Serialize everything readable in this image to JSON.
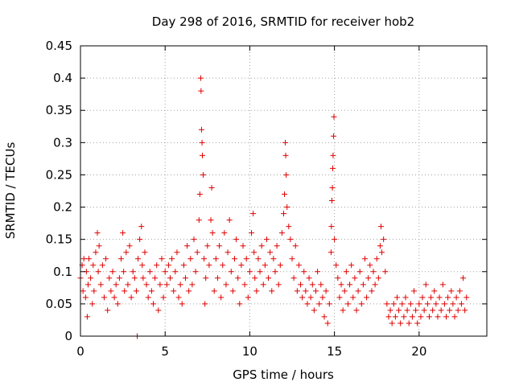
{
  "chart_data": {
    "type": "scatter",
    "title": "Day 298 of 2016, SRMTID for receiver hob2",
    "xlabel": "GPS time / hours",
    "ylabel": "SRMTID / TECUs",
    "xlim": [
      0,
      24
    ],
    "ylim": [
      0,
      0.45
    ],
    "xticks": [
      0,
      5,
      10,
      15,
      20
    ],
    "xtick_labels": [
      "0",
      "5",
      "10",
      "15",
      "20"
    ],
    "yticks": [
      0,
      0.05,
      0.1,
      0.15,
      0.2,
      0.25,
      0.3,
      0.35,
      0.4,
      0.45
    ],
    "ytick_labels": [
      "0",
      "0.05",
      "0.1",
      "0.15",
      "0.2",
      "0.25",
      "0.3",
      "0.35",
      "0.4",
      "0.45"
    ],
    "grid": true,
    "marker": "+",
    "marker_color": "#e00000",
    "series": [
      {
        "name": "SRMTID",
        "points": [
          [
            0.0,
            0.09
          ],
          [
            0.1,
            0.11
          ],
          [
            0.15,
            0.07
          ],
          [
            0.2,
            0.12
          ],
          [
            0.3,
            0.06
          ],
          [
            0.35,
            0.1
          ],
          [
            0.4,
            0.03
          ],
          [
            0.45,
            0.08
          ],
          [
            0.5,
            0.12
          ],
          [
            0.6,
            0.09
          ],
          [
            0.7,
            0.05
          ],
          [
            0.75,
            0.11
          ],
          [
            0.8,
            0.07
          ],
          [
            0.9,
            0.13
          ],
          [
            1.0,
            0.16
          ],
          [
            1.05,
            0.1
          ],
          [
            1.1,
            0.14
          ],
          [
            1.2,
            0.08
          ],
          [
            1.3,
            0.11
          ],
          [
            1.4,
            0.06
          ],
          [
            1.5,
            0.12
          ],
          [
            1.6,
            0.04
          ],
          [
            1.7,
            0.09
          ],
          [
            1.8,
            0.07
          ],
          [
            1.9,
            0.1
          ],
          [
            2.0,
            0.06
          ],
          [
            2.1,
            0.08
          ],
          [
            2.2,
            0.05
          ],
          [
            2.3,
            0.09
          ],
          [
            2.4,
            0.12
          ],
          [
            2.5,
            0.16
          ],
          [
            2.55,
            0.1
          ],
          [
            2.6,
            0.07
          ],
          [
            2.7,
            0.13
          ],
          [
            2.8,
            0.08
          ],
          [
            2.9,
            0.14
          ],
          [
            3.0,
            0.06
          ],
          [
            3.1,
            0.1
          ],
          [
            3.2,
            0.09
          ],
          [
            3.3,
            0.07
          ],
          [
            3.35,
            0.0
          ],
          [
            3.4,
            0.12
          ],
          [
            3.5,
            0.15
          ],
          [
            3.6,
            0.17
          ],
          [
            3.65,
            0.11
          ],
          [
            3.7,
            0.09
          ],
          [
            3.8,
            0.13
          ],
          [
            3.9,
            0.08
          ],
          [
            4.0,
            0.06
          ],
          [
            4.1,
            0.1
          ],
          [
            4.2,
            0.07
          ],
          [
            4.3,
            0.05
          ],
          [
            4.4,
            0.09
          ],
          [
            4.5,
            0.11
          ],
          [
            4.6,
            0.04
          ],
          [
            4.7,
            0.08
          ],
          [
            4.8,
            0.12
          ],
          [
            4.9,
            0.06
          ],
          [
            5.0,
            0.1
          ],
          [
            5.1,
            0.08
          ],
          [
            5.2,
            0.11
          ],
          [
            5.3,
            0.09
          ],
          [
            5.4,
            0.12
          ],
          [
            5.5,
            0.07
          ],
          [
            5.6,
            0.1
          ],
          [
            5.7,
            0.13
          ],
          [
            5.8,
            0.06
          ],
          [
            5.9,
            0.08
          ],
          [
            6.0,
            0.05
          ],
          [
            6.1,
            0.11
          ],
          [
            6.2,
            0.09
          ],
          [
            6.3,
            0.14
          ],
          [
            6.4,
            0.07
          ],
          [
            6.5,
            0.12
          ],
          [
            6.6,
            0.08
          ],
          [
            6.7,
            0.15
          ],
          [
            6.8,
            0.1
          ],
          [
            6.9,
            0.13
          ],
          [
            7.0,
            0.18
          ],
          [
            7.05,
            0.22
          ],
          [
            7.1,
            0.4
          ],
          [
            7.12,
            0.38
          ],
          [
            7.15,
            0.32
          ],
          [
            7.18,
            0.3
          ],
          [
            7.2,
            0.28
          ],
          [
            7.25,
            0.25
          ],
          [
            7.3,
            0.12
          ],
          [
            7.35,
            0.05
          ],
          [
            7.4,
            0.09
          ],
          [
            7.5,
            0.14
          ],
          [
            7.6,
            0.11
          ],
          [
            7.7,
            0.18
          ],
          [
            7.75,
            0.23
          ],
          [
            7.8,
            0.16
          ],
          [
            7.9,
            0.07
          ],
          [
            8.0,
            0.12
          ],
          [
            8.1,
            0.09
          ],
          [
            8.2,
            0.14
          ],
          [
            8.3,
            0.06
          ],
          [
            8.4,
            0.11
          ],
          [
            8.5,
            0.16
          ],
          [
            8.6,
            0.08
          ],
          [
            8.7,
            0.13
          ],
          [
            8.8,
            0.18
          ],
          [
            8.9,
            0.1
          ],
          [
            9.0,
            0.07
          ],
          [
            9.1,
            0.12
          ],
          [
            9.2,
            0.15
          ],
          [
            9.3,
            0.09
          ],
          [
            9.4,
            0.05
          ],
          [
            9.5,
            0.11
          ],
          [
            9.6,
            0.14
          ],
          [
            9.7,
            0.08
          ],
          [
            9.8,
            0.12
          ],
          [
            9.9,
            0.06
          ],
          [
            10.0,
            0.1
          ],
          [
            10.1,
            0.16
          ],
          [
            10.2,
            0.19
          ],
          [
            10.25,
            0.13
          ],
          [
            10.3,
            0.09
          ],
          [
            10.4,
            0.07
          ],
          [
            10.5,
            0.12
          ],
          [
            10.6,
            0.1
          ],
          [
            10.7,
            0.14
          ],
          [
            10.8,
            0.08
          ],
          [
            10.9,
            0.11
          ],
          [
            11.0,
            0.15
          ],
          [
            11.1,
            0.09
          ],
          [
            11.2,
            0.13
          ],
          [
            11.3,
            0.07
          ],
          [
            11.4,
            0.12
          ],
          [
            11.5,
            0.1
          ],
          [
            11.6,
            0.14
          ],
          [
            11.7,
            0.08
          ],
          [
            11.8,
            0.11
          ],
          [
            11.9,
            0.16
          ],
          [
            12.0,
            0.19
          ],
          [
            12.05,
            0.22
          ],
          [
            12.1,
            0.3
          ],
          [
            12.12,
            0.28
          ],
          [
            12.15,
            0.25
          ],
          [
            12.2,
            0.2
          ],
          [
            12.3,
            0.17
          ],
          [
            12.4,
            0.15
          ],
          [
            12.5,
            0.12
          ],
          [
            12.6,
            0.09
          ],
          [
            12.7,
            0.14
          ],
          [
            12.8,
            0.07
          ],
          [
            12.9,
            0.11
          ],
          [
            13.0,
            0.08
          ],
          [
            13.1,
            0.06
          ],
          [
            13.2,
            0.1
          ],
          [
            13.3,
            0.07
          ],
          [
            13.4,
            0.05
          ],
          [
            13.5,
            0.09
          ],
          [
            13.6,
            0.06
          ],
          [
            13.7,
            0.08
          ],
          [
            13.8,
            0.04
          ],
          [
            13.9,
            0.07
          ],
          [
            14.0,
            0.1
          ],
          [
            14.1,
            0.05
          ],
          [
            14.2,
            0.08
          ],
          [
            14.3,
            0.06
          ],
          [
            14.4,
            0.03
          ],
          [
            14.5,
            0.07
          ],
          [
            14.6,
            0.02
          ],
          [
            14.7,
            0.05
          ],
          [
            14.8,
            0.13
          ],
          [
            14.82,
            0.17
          ],
          [
            14.85,
            0.21
          ],
          [
            14.88,
            0.23
          ],
          [
            14.9,
            0.26
          ],
          [
            14.92,
            0.28
          ],
          [
            14.95,
            0.31
          ],
          [
            14.97,
            0.34
          ],
          [
            15.0,
            0.15
          ],
          [
            15.1,
            0.11
          ],
          [
            15.2,
            0.09
          ],
          [
            15.3,
            0.06
          ],
          [
            15.4,
            0.08
          ],
          [
            15.5,
            0.04
          ],
          [
            15.6,
            0.07
          ],
          [
            15.7,
            0.1
          ],
          [
            15.8,
            0.05
          ],
          [
            15.9,
            0.08
          ],
          [
            16.0,
            0.11
          ],
          [
            16.1,
            0.06
          ],
          [
            16.2,
            0.09
          ],
          [
            16.3,
            0.04
          ],
          [
            16.4,
            0.07
          ],
          [
            16.5,
            0.1
          ],
          [
            16.6,
            0.05
          ],
          [
            16.7,
            0.08
          ],
          [
            16.8,
            0.12
          ],
          [
            16.9,
            0.06
          ],
          [
            17.0,
            0.09
          ],
          [
            17.1,
            0.11
          ],
          [
            17.2,
            0.07
          ],
          [
            17.3,
            0.1
          ],
          [
            17.4,
            0.08
          ],
          [
            17.5,
            0.12
          ],
          [
            17.6,
            0.09
          ],
          [
            17.7,
            0.14
          ],
          [
            17.75,
            0.17
          ],
          [
            17.8,
            0.13
          ],
          [
            17.9,
            0.15
          ],
          [
            18.0,
            0.1
          ],
          [
            18.1,
            0.05
          ],
          [
            18.2,
            0.03
          ],
          [
            18.3,
            0.04
          ],
          [
            18.4,
            0.02
          ],
          [
            18.5,
            0.05
          ],
          [
            18.6,
            0.03
          ],
          [
            18.7,
            0.06
          ],
          [
            18.8,
            0.04
          ],
          [
            18.9,
            0.02
          ],
          [
            19.0,
            0.05
          ],
          [
            19.1,
            0.03
          ],
          [
            19.2,
            0.06
          ],
          [
            19.3,
            0.04
          ],
          [
            19.4,
            0.02
          ],
          [
            19.5,
            0.05
          ],
          [
            19.6,
            0.03
          ],
          [
            19.7,
            0.07
          ],
          [
            19.8,
            0.04
          ],
          [
            19.9,
            0.02
          ],
          [
            20.0,
            0.05
          ],
          [
            20.1,
            0.03
          ],
          [
            20.2,
            0.06
          ],
          [
            20.3,
            0.04
          ],
          [
            20.4,
            0.08
          ],
          [
            20.5,
            0.05
          ],
          [
            20.6,
            0.03
          ],
          [
            20.7,
            0.06
          ],
          [
            20.8,
            0.04
          ],
          [
            20.9,
            0.07
          ],
          [
            21.0,
            0.05
          ],
          [
            21.1,
            0.03
          ],
          [
            21.2,
            0.06
          ],
          [
            21.3,
            0.04
          ],
          [
            21.4,
            0.08
          ],
          [
            21.5,
            0.05
          ],
          [
            21.6,
            0.03
          ],
          [
            21.7,
            0.06
          ],
          [
            21.8,
            0.04
          ],
          [
            21.9,
            0.07
          ],
          [
            22.0,
            0.05
          ],
          [
            22.1,
            0.03
          ],
          [
            22.2,
            0.06
          ],
          [
            22.3,
            0.04
          ],
          [
            22.4,
            0.07
          ],
          [
            22.5,
            0.05
          ],
          [
            22.6,
            0.09
          ],
          [
            22.7,
            0.04
          ],
          [
            22.8,
            0.06
          ]
        ]
      }
    ]
  }
}
